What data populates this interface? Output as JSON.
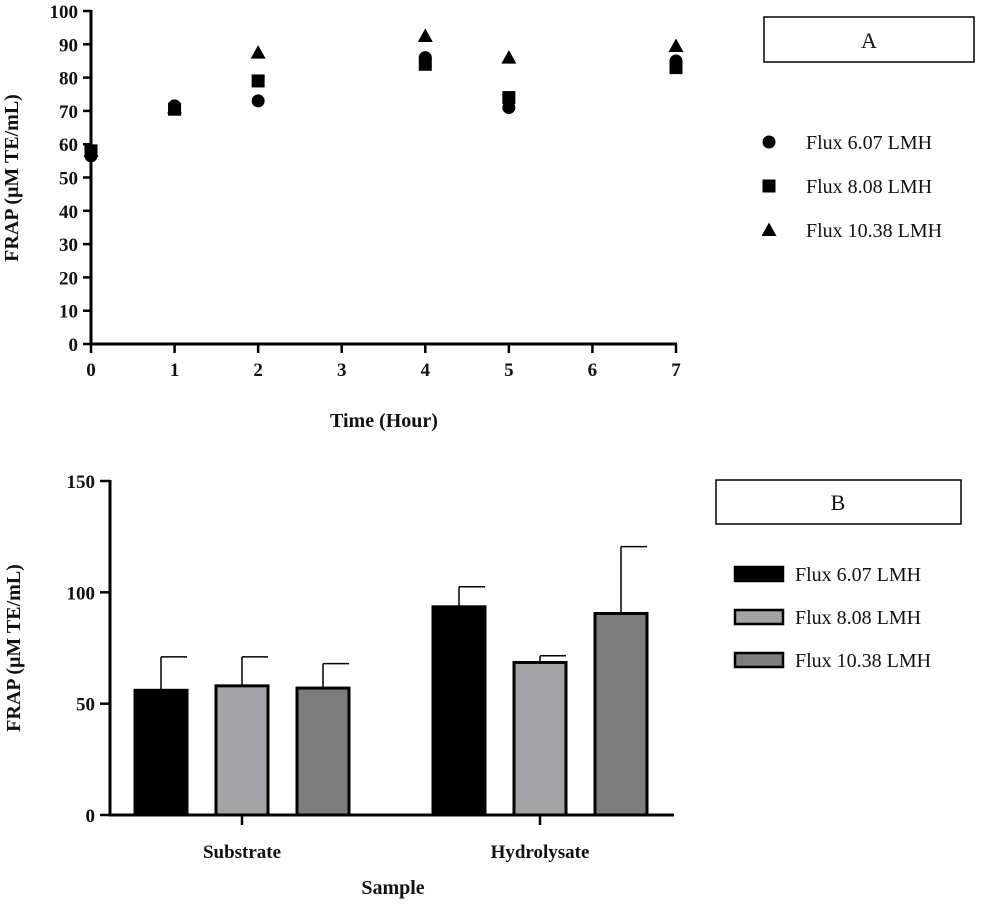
{
  "chart_data": [
    {
      "type": "scatter",
      "panel_label": "A",
      "xlabel": "Time (Hour)",
      "ylabel": "FRAP (μM TE/mL)",
      "xlim": [
        0,
        7
      ],
      "ylim": [
        0,
        100
      ],
      "x_ticks": [
        "0",
        "1",
        "2",
        "3",
        "4",
        "5",
        "6",
        "7"
      ],
      "y_ticks": [
        "0",
        "10",
        "20",
        "30",
        "40",
        "50",
        "60",
        "70",
        "80",
        "90",
        "100"
      ],
      "legend_position": "right",
      "series": [
        {
          "name": "Flux 6.07 LMH",
          "marker": "circle",
          "x": [
            0,
            1,
            2,
            4,
            5,
            7
          ],
          "y": [
            56.5,
            71.5,
            73,
            86,
            71,
            85
          ]
        },
        {
          "name": "Flux 8.08 LMH",
          "marker": "square",
          "x": [
            0,
            1,
            2,
            4,
            5,
            7
          ],
          "y": [
            58,
            70.5,
            79,
            84,
            74,
            83
          ]
        },
        {
          "name": "Flux 10.38 LMH",
          "marker": "triangle",
          "x": [
            0,
            1,
            2,
            4,
            5,
            7
          ],
          "y": [
            58,
            71,
            87.5,
            92.5,
            86,
            89.5
          ]
        }
      ]
    },
    {
      "type": "bar",
      "panel_label": "B",
      "xlabel": "Sample",
      "ylabel": "FRAP (μM TE/mL)",
      "ylim": [
        0,
        150
      ],
      "y_ticks": [
        "0",
        "50",
        "100",
        "150"
      ],
      "categories": [
        "Substrate",
        "Hydrolysate"
      ],
      "legend_position": "right",
      "series": [
        {
          "name": "Flux 6.07 LMH",
          "color": "#000000",
          "values": [
            56,
            93.5
          ],
          "errors": [
            15,
            9
          ]
        },
        {
          "name": "Flux 8.08 LMH",
          "color": "#a3a3a6",
          "values": [
            58,
            68.5
          ],
          "errors": [
            13,
            3
          ]
        },
        {
          "name": "Flux 10.38 LMH",
          "color": "#7c7c7c",
          "values": [
            57,
            90.5
          ],
          "errors": [
            11,
            30
          ]
        }
      ]
    }
  ]
}
